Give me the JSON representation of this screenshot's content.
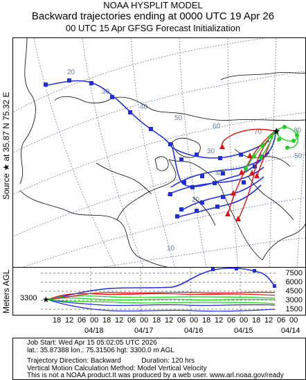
{
  "header": {
    "line1": "NOAA HYSPLIT MODEL",
    "line2": "Backward trajectories ending at 0000 UTC 19 Apr 26",
    "line3": "00 UTC 15 Apr    GFSG  Forecast Initialization"
  },
  "source_label": "Source ★  at   35.87 N   75.32 E",
  "agl_label": "Meters AGL",
  "start_height_label": "3300",
  "height_axis_ticks": [
    "7500",
    "6000",
    "4500",
    "3000",
    "1500"
  ],
  "time_axis": {
    "hour_labels": [
      "18",
      "12",
      "06",
      "00",
      "18",
      "12",
      "06",
      "00",
      "18",
      "12",
      "06",
      "00",
      "18",
      "12",
      "06",
      "00",
      "18",
      "12",
      "06",
      "00"
    ],
    "date_labels": [
      "04/18",
      "04/17",
      "04/16",
      "04/15",
      "04/14"
    ]
  },
  "grid_labels": [
    "20",
    "30",
    "40",
    "50",
    "60",
    "70",
    "80",
    "50",
    "40",
    "30",
    "20",
    "10"
  ],
  "info": {
    "job_start": "Job Start: Wed Apr 15 05:02:05 UTC 2026",
    "location": "lat.: 35.87388   lon.: 75.31506    hgt: 3300.0 m AGL",
    "direction": "Trajectory Direction: Backward",
    "duration": "Duration: 120 hrs",
    "vertical_motion": "Vertical Motion Calculation Method: Model Vertical Velocity",
    "disclaimer": "This is not a NOAA product.It was produced by a web user. www.arl.noaa.gov/ready"
  },
  "colors": {
    "series_blue": "#1f2fe0",
    "series_red": "#e01010",
    "series_green": "#20d020",
    "map_lines": "#000000",
    "grid_lines": "#6a7fa0"
  }
}
